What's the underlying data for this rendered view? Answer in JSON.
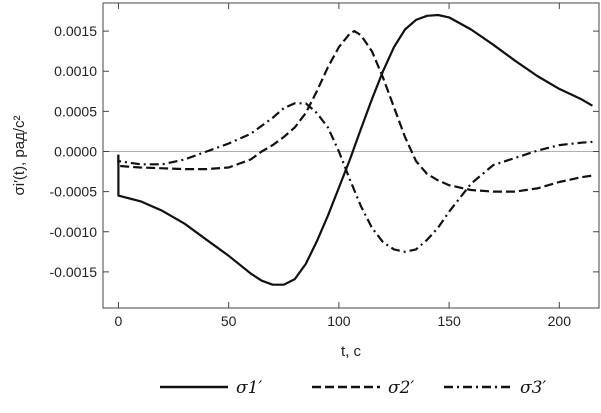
{
  "chart_data": {
    "type": "line",
    "xlabel": "t, с",
    "ylabel": "σi′(t), рад/с²",
    "xlim": [
      -7,
      218
    ],
    "ylim": [
      -0.00195,
      0.00185
    ],
    "x_ticks": [
      {
        "value": 0,
        "label": "0"
      },
      {
        "value": 50,
        "label": "50"
      },
      {
        "value": 100,
        "label": "100"
      },
      {
        "value": 150,
        "label": "150"
      },
      {
        "value": 200,
        "label": "200"
      }
    ],
    "y_ticks": [
      {
        "value": 0.0015,
        "label": "0.0015"
      },
      {
        "value": 0.001,
        "label": "0.0010"
      },
      {
        "value": 0.0005,
        "label": "0.0005"
      },
      {
        "value": 0,
        "label": "0.0000"
      },
      {
        "value": -0.0005,
        "label": "-0.0005"
      },
      {
        "value": -0.001,
        "label": "-0.0010"
      },
      {
        "value": -0.0015,
        "label": "-0.0015"
      }
    ],
    "grid": false,
    "zero_line": true,
    "legend_position": "bottom",
    "series": [
      {
        "name": "σ1′",
        "style": "solid",
        "color": "#111111",
        "points": [
          [
            0,
            -0.0001
          ],
          [
            0,
            -0.00055
          ],
          [
            10,
            -0.00062
          ],
          [
            20,
            -0.00074
          ],
          [
            30,
            -0.0009
          ],
          [
            40,
            -0.0011
          ],
          [
            50,
            -0.0013
          ],
          [
            60,
            -0.00152
          ],
          [
            65,
            -0.00161
          ],
          [
            70,
            -0.00166
          ],
          [
            75,
            -0.00166
          ],
          [
            80,
            -0.00159
          ],
          [
            85,
            -0.0014
          ],
          [
            90,
            -0.00112
          ],
          [
            95,
            -0.0008
          ],
          [
            100,
            -0.00045
          ],
          [
            105,
            -0.0001
          ],
          [
            110,
            0.00028
          ],
          [
            115,
            0.00065
          ],
          [
            120,
            0.001
          ],
          [
            125,
            0.0013
          ],
          [
            130,
            0.00152
          ],
          [
            135,
            0.00164
          ],
          [
            140,
            0.00169
          ],
          [
            145,
            0.0017
          ],
          [
            150,
            0.00167
          ],
          [
            160,
            0.00152
          ],
          [
            170,
            0.00133
          ],
          [
            180,
            0.00113
          ],
          [
            190,
            0.00094
          ],
          [
            200,
            0.00078
          ],
          [
            210,
            0.00065
          ],
          [
            215,
            0.00057
          ]
        ]
      },
      {
        "name": "σ2′",
        "style": "dashed",
        "color": "#111111",
        "points": [
          [
            0,
            -4e-05
          ],
          [
            0,
            -0.00018
          ],
          [
            10,
            -0.0002
          ],
          [
            20,
            -0.00021
          ],
          [
            30,
            -0.00022
          ],
          [
            40,
            -0.00022
          ],
          [
            50,
            -0.0002
          ],
          [
            60,
            -0.0001
          ],
          [
            65,
            0
          ],
          [
            70,
            8e-05
          ],
          [
            75,
            0.00018
          ],
          [
            80,
            0.0003
          ],
          [
            85,
            0.00048
          ],
          [
            90,
            0.00075
          ],
          [
            95,
            0.00105
          ],
          [
            100,
            0.0013
          ],
          [
            105,
            0.00147
          ],
          [
            107,
            0.0015
          ],
          [
            110,
            0.00145
          ],
          [
            115,
            0.00125
          ],
          [
            120,
            0.00092
          ],
          [
            125,
            0.00055
          ],
          [
            130,
            0.00018
          ],
          [
            135,
            -0.00012
          ],
          [
            140,
            -0.00028
          ],
          [
            145,
            -0.00036
          ],
          [
            150,
            -0.00042
          ],
          [
            160,
            -0.00048
          ],
          [
            170,
            -0.0005
          ],
          [
            180,
            -0.0005
          ],
          [
            190,
            -0.00046
          ],
          [
            200,
            -0.00038
          ],
          [
            210,
            -0.00032
          ],
          [
            215,
            -0.0003
          ]
        ]
      },
      {
        "name": "σ3′",
        "style": "dashdot",
        "color": "#111111",
        "points": [
          [
            0,
            -4e-05
          ],
          [
            0,
            -0.00012
          ],
          [
            10,
            -0.00016
          ],
          [
            20,
            -0.00016
          ],
          [
            30,
            -0.0001
          ],
          [
            40,
            0
          ],
          [
            50,
            0.0001
          ],
          [
            60,
            0.00022
          ],
          [
            70,
            0.00042
          ],
          [
            75,
            0.00054
          ],
          [
            80,
            0.0006
          ],
          [
            85,
            0.0006
          ],
          [
            90,
            0.00048
          ],
          [
            95,
            0.0003
          ],
          [
            100,
            0
          ],
          [
            105,
            -0.00035
          ],
          [
            110,
            -0.00068
          ],
          [
            115,
            -0.00095
          ],
          [
            120,
            -0.00113
          ],
          [
            125,
            -0.00122
          ],
          [
            130,
            -0.00125
          ],
          [
            135,
            -0.00122
          ],
          [
            140,
            -0.0011
          ],
          [
            145,
            -0.00095
          ],
          [
            150,
            -0.00075
          ],
          [
            160,
            -0.0004
          ],
          [
            170,
            -0.00017
          ],
          [
            180,
            -8e-05
          ],
          [
            190,
            1e-05
          ],
          [
            200,
            8e-05
          ],
          [
            210,
            0.00011
          ],
          [
            215,
            0.00012
          ]
        ]
      }
    ]
  }
}
